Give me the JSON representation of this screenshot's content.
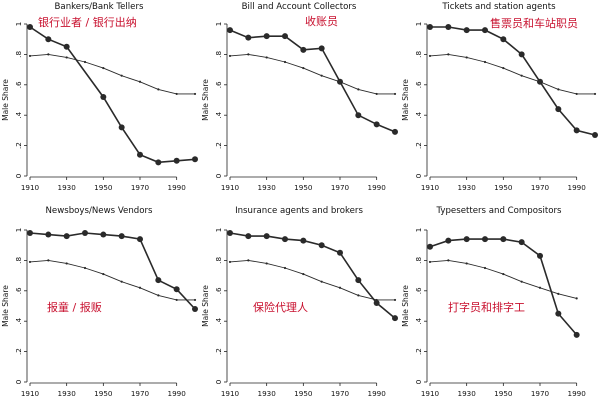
{
  "chart_data": [
    {
      "type": "line",
      "title": "Bankers/Bank Tellers",
      "annotation": "银行业者 / 银行出纳",
      "ylabel": "Male Share",
      "ylim": [
        0,
        1
      ],
      "xlim": [
        1910,
        2000
      ],
      "xticks": [
        "1910",
        "1930",
        "1950",
        "1970",
        "1990"
      ],
      "yticks": [
        "0",
        ".2",
        ".4",
        ".6",
        ".8",
        "1"
      ],
      "series": [
        {
          "style": "marked",
          "x": [
            1910,
            1920,
            1930,
            1950,
            1960,
            1970,
            1980,
            1990,
            2000
          ],
          "values": [
            0.98,
            0.9,
            0.85,
            0.52,
            0.32,
            0.14,
            0.09,
            0.1,
            0.11
          ]
        },
        {
          "style": "thin",
          "x": [
            1910,
            1920,
            1930,
            1940,
            1950,
            1960,
            1970,
            1980,
            1990,
            2000
          ],
          "values": [
            0.79,
            0.8,
            0.78,
            0.75,
            0.71,
            0.66,
            0.62,
            0.57,
            0.54,
            0.54
          ]
        }
      ]
    },
    {
      "type": "line",
      "title": "Bill and Account Collectors",
      "annotation": "收账员",
      "ylabel": "Male Share",
      "ylim": [
        0,
        1
      ],
      "xlim": [
        1910,
        2000
      ],
      "xticks": [
        "1910",
        "1930",
        "1950",
        "1970",
        "1990"
      ],
      "yticks": [
        "0",
        ".2",
        ".4",
        ".6",
        ".8",
        "1"
      ],
      "series": [
        {
          "style": "marked",
          "x": [
            1910,
            1920,
            1930,
            1940,
            1950,
            1960,
            1970,
            1980,
            1990,
            2000
          ],
          "values": [
            0.96,
            0.91,
            0.92,
            0.92,
            0.83,
            0.84,
            0.62,
            0.4,
            0.34,
            0.29
          ]
        },
        {
          "style": "thin",
          "x": [
            1910,
            1920,
            1930,
            1940,
            1950,
            1960,
            1970,
            1980,
            1990,
            2000
          ],
          "values": [
            0.79,
            0.8,
            0.78,
            0.75,
            0.71,
            0.66,
            0.62,
            0.57,
            0.54,
            0.54
          ]
        }
      ]
    },
    {
      "type": "line",
      "title": "Tickets and station agents",
      "annotation": "售票员和车站职员",
      "ylabel": "Male Share",
      "ylim": [
        0,
        1
      ],
      "xlim": [
        1910,
        2000
      ],
      "xticks": [
        "1910",
        "1930",
        "1950",
        "1970",
        "1990"
      ],
      "yticks": [
        "0",
        ".2",
        ".4",
        ".6",
        ".8",
        "1"
      ],
      "series": [
        {
          "style": "marked",
          "x": [
            1910,
            1920,
            1930,
            1940,
            1950,
            1960,
            1970,
            1980,
            1990,
            2000
          ],
          "values": [
            0.98,
            0.98,
            0.96,
            0.96,
            0.9,
            0.8,
            0.62,
            0.44,
            0.3,
            0.27
          ]
        },
        {
          "style": "thin",
          "x": [
            1910,
            1920,
            1930,
            1940,
            1950,
            1960,
            1970,
            1980,
            1990,
            2000
          ],
          "values": [
            0.79,
            0.8,
            0.78,
            0.75,
            0.71,
            0.66,
            0.62,
            0.57,
            0.54,
            0.54
          ]
        }
      ]
    },
    {
      "type": "line",
      "title": "Newsboys/News Vendors",
      "annotation": "报童 / 报贩",
      "ylabel": "Male Share",
      "ylim": [
        0,
        1
      ],
      "xlim": [
        1910,
        2000
      ],
      "xticks": [
        "1910",
        "1930",
        "1950",
        "1970",
        "1990"
      ],
      "yticks": [
        "0",
        ".2",
        ".4",
        ".6",
        ".8",
        "1"
      ],
      "series": [
        {
          "style": "marked",
          "x": [
            1910,
            1920,
            1930,
            1940,
            1950,
            1960,
            1970,
            1980,
            1990,
            2000
          ],
          "values": [
            0.98,
            0.97,
            0.96,
            0.98,
            0.97,
            0.96,
            0.94,
            0.67,
            0.61,
            0.48
          ]
        },
        {
          "style": "thin",
          "x": [
            1910,
            1920,
            1930,
            1940,
            1950,
            1960,
            1970,
            1980,
            1990,
            2000
          ],
          "values": [
            0.79,
            0.8,
            0.78,
            0.75,
            0.71,
            0.66,
            0.62,
            0.57,
            0.54,
            0.54
          ]
        }
      ]
    },
    {
      "type": "line",
      "title": "Insurance agents and brokers",
      "annotation": "保险代理人",
      "ylabel": "Male Share",
      "ylim": [
        0,
        1
      ],
      "xlim": [
        1910,
        2000
      ],
      "xticks": [
        "1910",
        "1930",
        "1950",
        "1970",
        "1990"
      ],
      "yticks": [
        "0",
        ".2",
        ".4",
        ".6",
        ".8",
        "1"
      ],
      "series": [
        {
          "style": "marked",
          "x": [
            1910,
            1920,
            1930,
            1940,
            1950,
            1960,
            1970,
            1980,
            1990,
            2000
          ],
          "values": [
            0.98,
            0.96,
            0.96,
            0.94,
            0.93,
            0.9,
            0.85,
            0.67,
            0.52,
            0.42
          ]
        },
        {
          "style": "thin",
          "x": [
            1910,
            1920,
            1930,
            1940,
            1950,
            1960,
            1970,
            1980,
            1990,
            2000
          ],
          "values": [
            0.79,
            0.8,
            0.78,
            0.75,
            0.71,
            0.66,
            0.62,
            0.57,
            0.54,
            0.54
          ]
        }
      ]
    },
    {
      "type": "line",
      "title": "Typesetters and Compositors",
      "annotation": "打字员和排字工",
      "ylabel": "Male Share",
      "ylim": [
        0,
        1
      ],
      "xlim": [
        1910,
        2000
      ],
      "xticks": [
        "1910",
        "1930",
        "1950",
        "1970",
        "1990"
      ],
      "yticks": [
        "0",
        ".2",
        ".4",
        ".6",
        ".8",
        "1"
      ],
      "series": [
        {
          "style": "marked",
          "x": [
            1910,
            1920,
            1930,
            1940,
            1950,
            1960,
            1970,
            1980,
            1990
          ],
          "values": [
            0.89,
            0.93,
            0.94,
            0.94,
            0.94,
            0.92,
            0.83,
            0.45,
            0.31
          ]
        },
        {
          "style": "thin",
          "x": [
            1910,
            1920,
            1930,
            1940,
            1950,
            1960,
            1970,
            1980,
            1990
          ],
          "values": [
            0.79,
            0.8,
            0.78,
            0.75,
            0.71,
            0.66,
            0.62,
            0.58,
            0.55
          ]
        }
      ]
    }
  ]
}
